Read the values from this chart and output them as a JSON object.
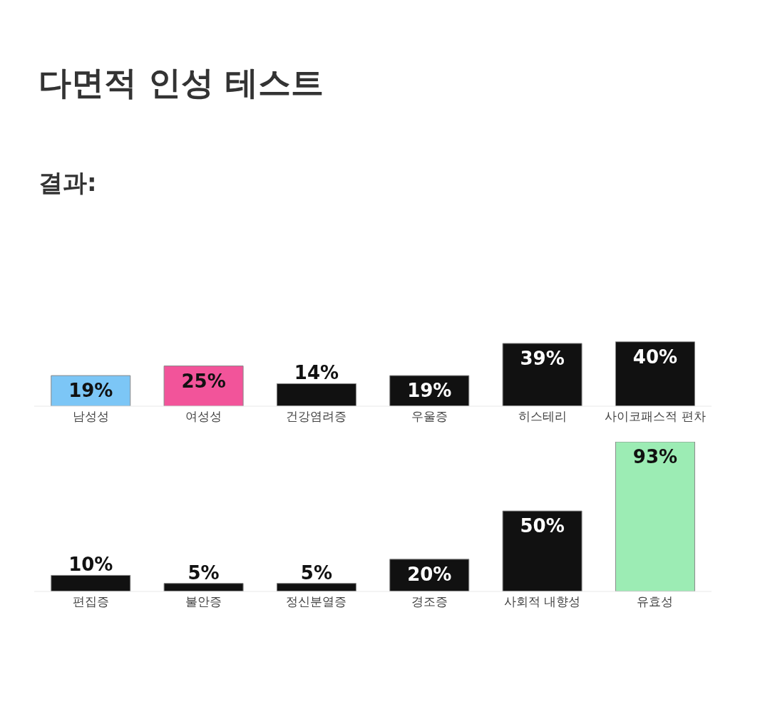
{
  "chart_data": [
    {
      "type": "bar",
      "title": "다면적 인성 테스트",
      "subtitle": "결과:",
      "categories": [
        "남성성",
        "여성성",
        "건강염려증",
        "우울증",
        "히스테리",
        "사이코패스적 편차"
      ],
      "values": [
        19,
        25,
        14,
        19,
        39,
        40
      ],
      "value_labels": [
        "19%",
        "25%",
        "14%",
        "19%",
        "39%",
        "40%"
      ],
      "colors": [
        "#7cc6f6",
        "#f2549a",
        "#111111",
        "#111111",
        "#111111",
        "#111111"
      ],
      "tick_labels": "x"
    },
    {
      "type": "bar",
      "categories": [
        "편집증",
        "불안증",
        "정신분열증",
        "경조증",
        "사회적 내향성",
        "유효성"
      ],
      "values": [
        10,
        5,
        5,
        20,
        50,
        93
      ],
      "value_labels": [
        "10%",
        "5%",
        "5%",
        "20%",
        "50%",
        "93%"
      ],
      "colors": [
        "#111111",
        "#111111",
        "#111111",
        "#111111",
        "#111111",
        "#9cecb4"
      ],
      "tick_labels": "x"
    }
  ]
}
